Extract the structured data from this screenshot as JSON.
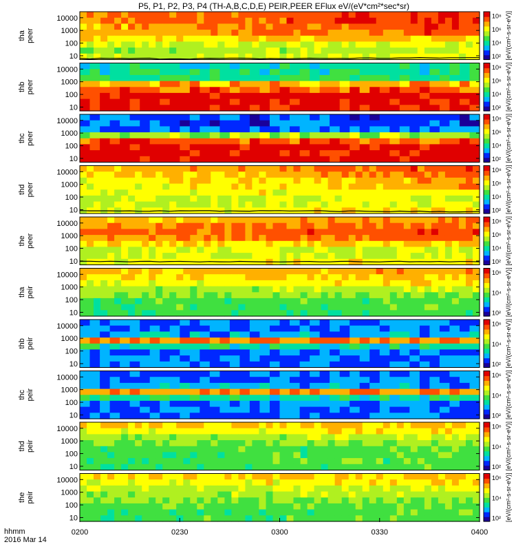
{
  "chart_data": {
    "type": "heatmap",
    "title": "P5, P1, P2, P3, P4 (TH-A,B,C,D,E) PEIR,PEER EFlux eV/(eV*cm²*sec*sr)",
    "x_ticks": [
      "0200",
      "0230",
      "0300",
      "0330",
      "0400"
    ],
    "x_range": [
      "02:00",
      "04:00"
    ],
    "x_label_line1": "hhmm",
    "x_label_line2": "2016 Mar 14",
    "y_range": [
      5,
      30000
    ],
    "y_scale": "log",
    "y_ticks": [
      "10000",
      "1000",
      "100",
      "10"
    ],
    "colorbar_ticks_peer": [
      "10⁸",
      "10⁶",
      "10⁴",
      "10²"
    ],
    "colorbar_ticks_peir": [
      "10⁶",
      "10⁴",
      "10²"
    ],
    "colorbar_label": "[eV/(cm²-s-sr-eV)]",
    "colors": {
      "scale": [
        "#1a0099",
        "#0028ff",
        "#00b4ff",
        "#00e0a0",
        "#40e040",
        "#b0f020",
        "#ffff00",
        "#ffb000",
        "#ff5000",
        "#e00000"
      ]
    },
    "panels": [
      {
        "label_top": "tha",
        "label_bottom": "peer",
        "texture": "dense",
        "levels": [
          8,
          8,
          7.5,
          7.5,
          6.5,
          5.5,
          5,
          5.5
        ],
        "trend": 1.2,
        "has_trace": true,
        "trace_levels": [
          6,
          6,
          7
        ]
      },
      {
        "label_top": "thb",
        "label_bottom": "peer",
        "texture": "banded",
        "levels": [
          3,
          3.2,
          3.5,
          7,
          8,
          9,
          9,
          9
        ]
      },
      {
        "label_top": "thc",
        "label_bottom": "peer",
        "texture": "banded",
        "levels": [
          1.2,
          1.2,
          1.5,
          5,
          8,
          9,
          9,
          9
        ]
      },
      {
        "label_top": "thd",
        "label_bottom": "peer",
        "texture": "dense",
        "levels": [
          7.5,
          7,
          6.5,
          6.5,
          6,
          5.5,
          5.5,
          6
        ],
        "trend": 1.4,
        "has_trace": true,
        "trace_levels": [
          8,
          8,
          7
        ]
      },
      {
        "label_top": "the",
        "label_bottom": "peer",
        "texture": "dense",
        "levels": [
          7,
          7.5,
          8,
          7.5,
          6.5,
          5.5,
          5.5,
          6
        ],
        "trend": 0.8,
        "has_trace": true,
        "trace_levels": [
          9,
          9,
          9
        ]
      },
      {
        "label_top": "tha",
        "label_bottom": "peir",
        "texture": "dense",
        "levels": [
          7,
          6.5,
          6,
          5,
          4.5,
          4,
          4,
          3.8
        ],
        "trend": 0.6
      },
      {
        "label_top": "thb",
        "label_bottom": "peir",
        "texture": "banded",
        "levels": [
          1.5,
          1.5,
          2,
          7.5,
          3,
          1.5,
          1.5,
          1.5
        ]
      },
      {
        "label_top": "thc",
        "label_bottom": "peir",
        "texture": "banded",
        "levels": [
          1.5,
          1.5,
          2,
          7.5,
          3,
          1.5,
          1.5,
          1.5
        ]
      },
      {
        "label_top": "thd",
        "label_bottom": "peir",
        "texture": "dense",
        "levels": [
          6.5,
          6,
          5,
          4.5,
          4,
          4,
          4,
          4
        ],
        "trend": 0.6
      },
      {
        "label_top": "the",
        "label_bottom": "peir",
        "texture": "dense",
        "levels": [
          6.5,
          6,
          5.5,
          5,
          4.5,
          4.2,
          4,
          4
        ],
        "trend": 0.5
      }
    ]
  }
}
